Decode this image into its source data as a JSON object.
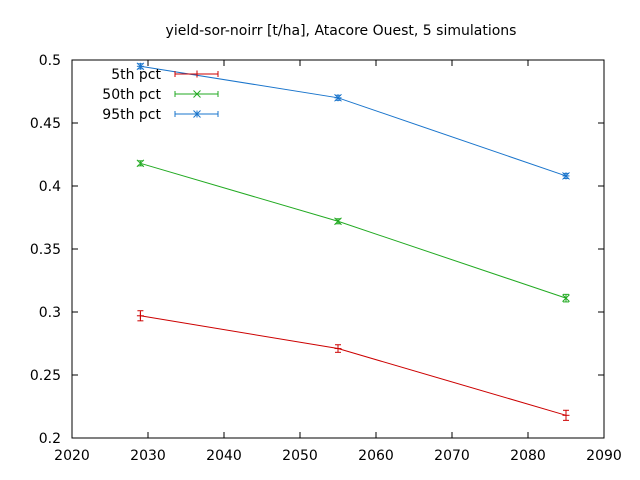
{
  "chart_data": {
    "type": "line",
    "title": "yield-sor-noirr [t/ha], Atacore Ouest, 5 simulations",
    "xlabel": "",
    "ylabel": "",
    "xlim": [
      2020,
      2090
    ],
    "ylim": [
      0.2,
      0.5
    ],
    "xticks": [
      2020,
      2030,
      2040,
      2050,
      2060,
      2070,
      2080,
      2090
    ],
    "yticks": [
      0.2,
      0.25,
      0.3,
      0.35,
      0.4,
      0.45,
      0.5
    ],
    "ytick_labels": [
      "0.2",
      "0.25",
      "0.3",
      "0.35",
      "0.4",
      "0.45",
      "0.5"
    ],
    "grid": false,
    "legend_position": "top-left",
    "x": [
      2029,
      2055,
      2085
    ],
    "series": [
      {
        "name": "5th pct",
        "color": "#cc0000",
        "marker": "plus",
        "values": [
          0.297,
          0.271,
          0.218
        ],
        "errors": [
          0.004,
          0.003,
          0.004
        ]
      },
      {
        "name": "50th pct",
        "color": "#22aa22",
        "marker": "cross",
        "values": [
          0.418,
          0.372,
          0.311
        ],
        "errors": [
          0.002,
          0.002,
          0.003
        ]
      },
      {
        "name": "95th pct",
        "color": "#1a75cc",
        "marker": "star",
        "values": [
          0.495,
          0.47,
          0.408
        ],
        "errors": [
          0.002,
          0.002,
          0.002
        ]
      }
    ]
  }
}
